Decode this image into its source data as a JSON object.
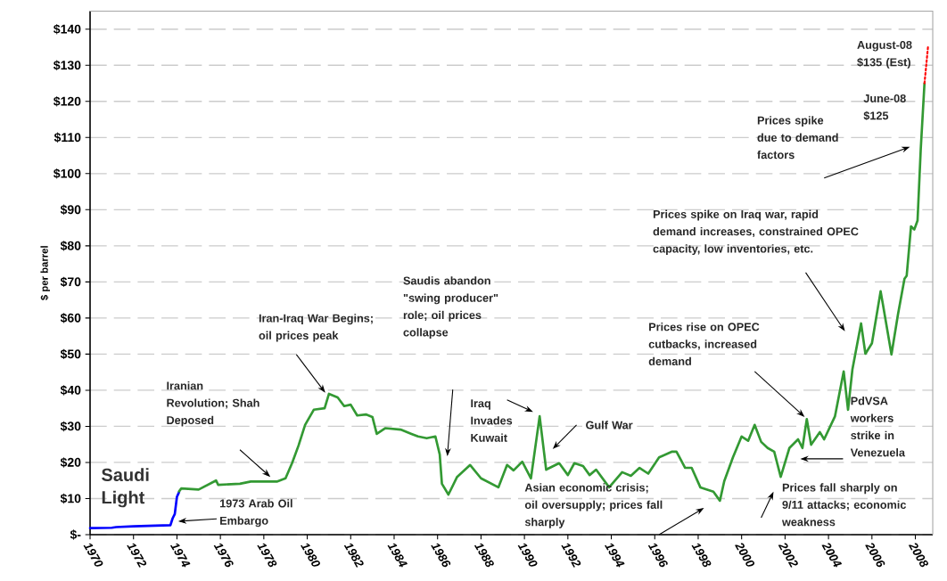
{
  "chart_data": {
    "type": "line",
    "ylabel": "$ per barrel",
    "xlim": [
      1970,
      2008.8
    ],
    "ylim": [
      0,
      145
    ],
    "xticks": [
      1970,
      1972,
      1974,
      1976,
      1978,
      1980,
      1982,
      1984,
      1986,
      1988,
      1990,
      1992,
      1994,
      1996,
      1998,
      2000,
      2002,
      2004,
      2006,
      2008
    ],
    "yticks": [
      {
        "value": 0,
        "label": "$-"
      },
      {
        "value": 10,
        "label": "$10"
      },
      {
        "value": 20,
        "label": "$20"
      },
      {
        "value": 30,
        "label": "$30"
      },
      {
        "value": 40,
        "label": "$40"
      },
      {
        "value": 50,
        "label": "$50"
      },
      {
        "value": 60,
        "label": "$60"
      },
      {
        "value": 70,
        "label": "$70"
      },
      {
        "value": 80,
        "label": "$80"
      },
      {
        "value": 90,
        "label": "$90"
      },
      {
        "value": 100,
        "label": "$100"
      },
      {
        "value": 110,
        "label": "$110"
      },
      {
        "value": 120,
        "label": "$120"
      },
      {
        "value": 130,
        "label": "$130"
      },
      {
        "value": 140,
        "label": "$140"
      }
    ],
    "grid": "y",
    "marker": "none",
    "line_style": "solid",
    "series": [
      {
        "name": "Saudi Light",
        "color": "#0000ff",
        "x": [
          1970,
          1971,
          1971.2,
          1972,
          1973,
          1973.7,
          1973.8,
          1973.9,
          1974.0,
          1974.1
        ],
        "values": [
          1.8,
          1.9,
          2.1,
          2.3,
          2.5,
          2.6,
          4.5,
          5.7,
          10.5,
          11.8
        ]
      },
      {
        "color": "#339933",
        "x": [
          1974.1,
          1974.2,
          1975.0,
          1975.8,
          1975.9,
          1976.9,
          1977.4,
          1978.6,
          1979.0,
          1979.3,
          1979.6,
          1979.9,
          1980.3,
          1980.8,
          1981.0,
          1981.4,
          1981.7,
          1982.0,
          1982.3,
          1982.7,
          1983.0,
          1983.2,
          1983.6,
          1984.3,
          1984.8,
          1985.1,
          1985.5,
          1985.9,
          1986.1,
          1986.2,
          1986.5,
          1986.9,
          1987.5,
          1988.0,
          1988.8,
          1989.2,
          1989.5,
          1989.9,
          1990.3,
          1990.7,
          1991.0,
          1991.6,
          1992.0,
          1992.3,
          1992.7,
          1993.0,
          1993.3,
          1993.9,
          1994.5,
          1994.9,
          1995.3,
          1995.7,
          1996.2,
          1996.8,
          1997.0,
          1997.4,
          1997.7,
          1998.1,
          1998.7,
          1999.0,
          1999.2,
          1999.6,
          2000.0,
          2000.3,
          2000.6,
          2000.9,
          2001.2,
          2001.5,
          2001.8,
          2002.2,
          2002.6,
          2002.8,
          2003.0,
          2003.2,
          2003.6,
          2003.8,
          2004.3,
          2004.7,
          2004.9,
          2005.1,
          2005.5,
          2005.7,
          2006.0,
          2006.4,
          2006.5,
          2006.9,
          2007.2,
          2007.5,
          2007.6,
          2007.8,
          2007.95,
          2008.1,
          2008.25,
          2008.42
        ],
        "values": [
          12.0,
          12.8,
          12.5,
          15.0,
          13.8,
          14.1,
          14.7,
          14.7,
          15.6,
          19.8,
          24.7,
          30.4,
          34.6,
          35.0,
          39.0,
          38.0,
          35.6,
          36.0,
          33.0,
          33.3,
          32.6,
          27.9,
          29.5,
          29.1,
          27.9,
          27.2,
          26.7,
          27.2,
          22.2,
          14.1,
          11.1,
          16.0,
          19.3,
          15.6,
          13.1,
          19.3,
          17.8,
          20.2,
          15.6,
          32.8,
          18.0,
          19.8,
          16.5,
          19.8,
          19.0,
          16.5,
          18.0,
          13.1,
          17.3,
          16.3,
          18.5,
          16.9,
          21.4,
          23.0,
          23.0,
          18.5,
          18.5,
          13.1,
          11.9,
          9.4,
          14.8,
          21.4,
          27.2,
          26.0,
          30.4,
          25.7,
          24.0,
          23.0,
          16.0,
          24.0,
          26.4,
          24.0,
          32.0,
          24.9,
          28.4,
          26.4,
          32.8,
          45.2,
          34.6,
          45.7,
          58.5,
          50.1,
          53.0,
          67.4,
          64.0,
          49.9,
          61.0,
          70.9,
          71.7,
          85.4,
          84.5,
          87.0,
          107.0,
          125.0
        ]
      },
      {
        "color": "#ff0000",
        "line_style": "dotted",
        "x": [
          2008.42,
          2008.58
        ],
        "values": [
          125,
          135
        ]
      }
    ],
    "annotations": [
      "1973 Arab Oil Embargo",
      "Iranian Revolution; Shah Deposed",
      "Iran-Iraq War Begins; oil prices peak",
      "Saudis abandon \"swing producer\" role; oil prices collapse",
      "Iraq Invades Kuwait",
      "Gulf War",
      "Asian economic crisis; oil oversupply; prices fall sharply",
      "Prices fall sharply on 9/11 attacks; economic weakness",
      "PdVSA workers strike in Venezuela",
      "Prices rise on OPEC cutbacks, increased demand",
      "Prices spike on Iraq war, rapid demand increases, constrained OPEC  capacity, low inventories, etc.",
      "Prices spike due to demand factors",
      "June-08 $125",
      "August-08 $135 (Est)"
    ]
  }
}
